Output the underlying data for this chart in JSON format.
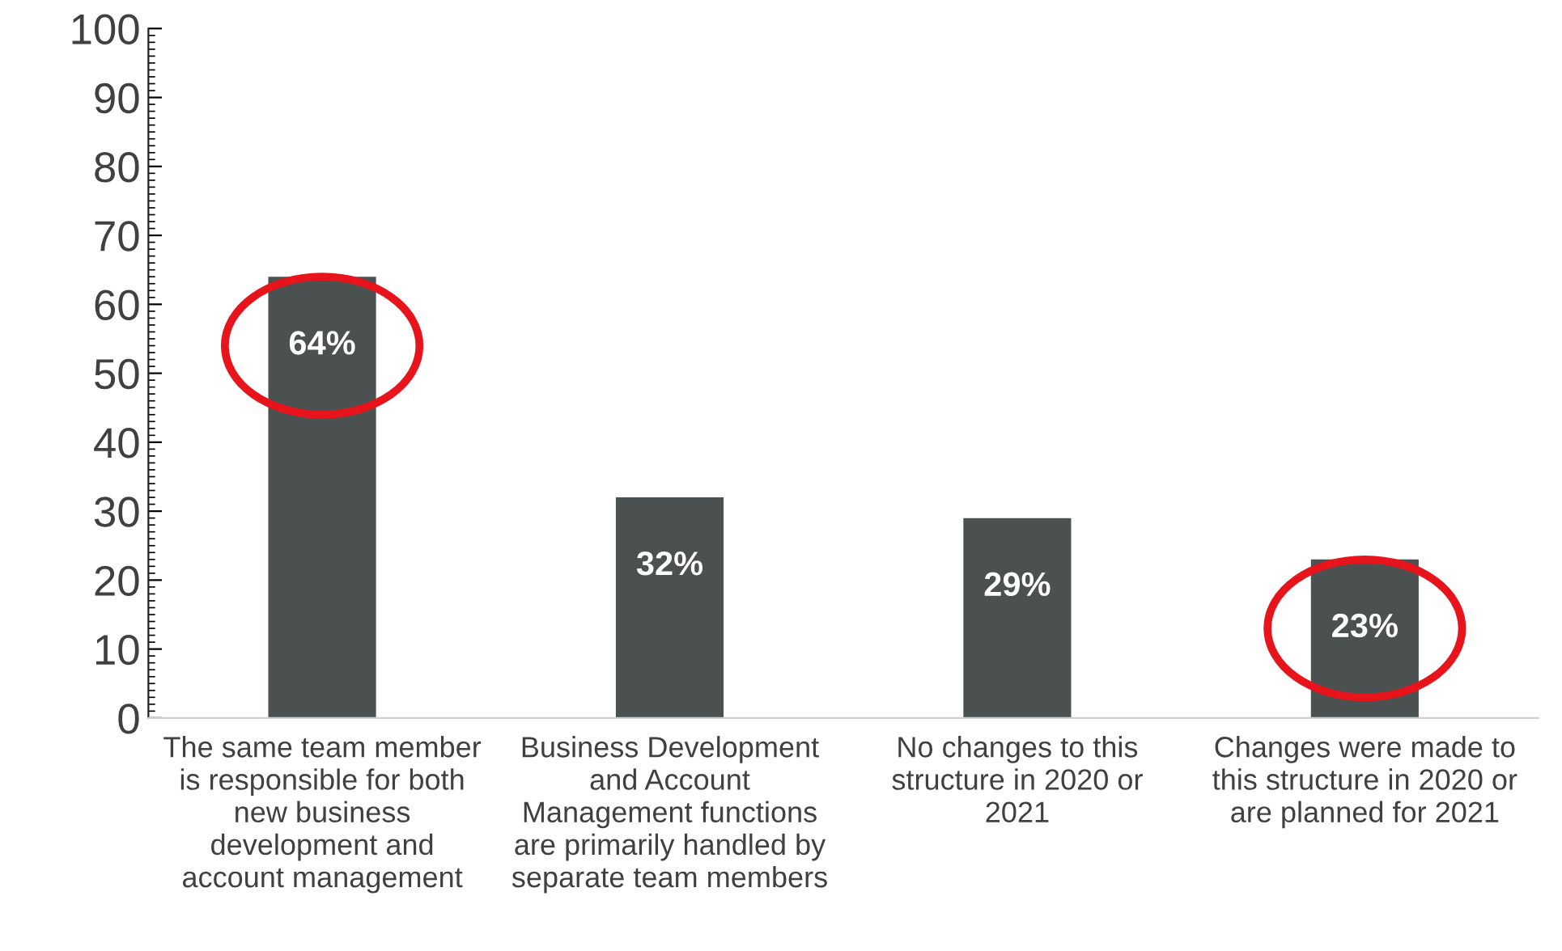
{
  "chart_data": {
    "type": "bar",
    "categories": [
      "The same team member\nis responsible for both\nnew business\ndevelopment and\naccount management",
      "Business Development\nand Account\nManagement functions\nare primarily handled by\nseparate team members",
      "No changes to this\nstructure in 2020 or\n2021",
      "Changes were made to\nthis structure in 2020 or\nare planned for 2021"
    ],
    "values": [
      64,
      32,
      29,
      23
    ],
    "value_labels": [
      "64%",
      "32%",
      "29%",
      "23%"
    ],
    "color": "#4b5050",
    "ylim": [
      0,
      100
    ],
    "yticks": [
      0,
      10,
      20,
      30,
      40,
      50,
      60,
      70,
      80,
      90,
      100
    ],
    "grid": false,
    "legend": false
  }
}
